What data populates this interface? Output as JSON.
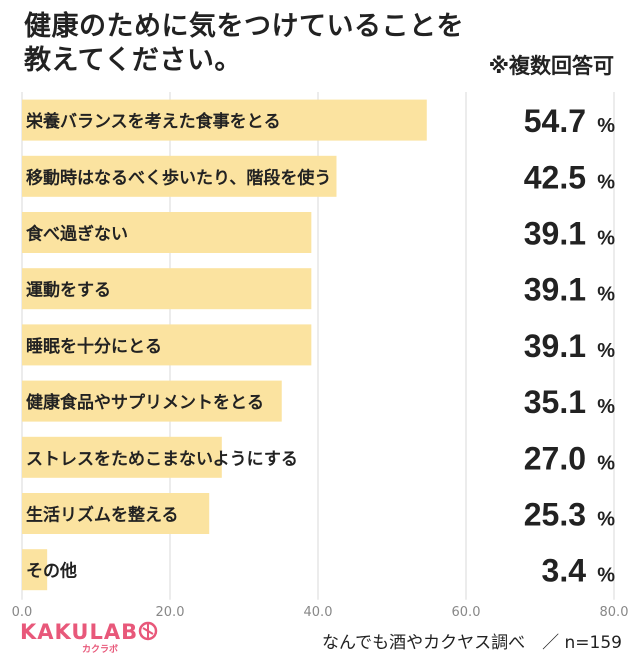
{
  "title_line1": "健康のために気をつけていることを",
  "title_line2": "教えてください。",
  "note": "※複数回答可",
  "logo": {
    "main": "KAKULAB",
    "sub": "カクラボ"
  },
  "source": "なんでも酒やカクヤス調べ　／ n=159",
  "colors": {
    "bar": "#fbe3a0",
    "grid": "#d9d9d9",
    "text": "#222222",
    "axis": "#888888",
    "brand": "#e8587a"
  },
  "chart_data": {
    "type": "bar",
    "orientation": "horizontal",
    "categories": [
      "栄養バランスを考えた食事をとる",
      "移動時はなるべく歩いたり、階段を使う",
      "食べ過ぎない",
      "運動をする",
      "睡眠を十分にとる",
      "健康食品やサプリメントをとる",
      "ストレスをためこまないようにする",
      "生活リズムを整える",
      "その他"
    ],
    "values": [
      54.7,
      42.5,
      39.1,
      39.1,
      39.1,
      35.1,
      27.0,
      25.3,
      3.4
    ],
    "value_labels": [
      "54.7",
      "42.5",
      "39.1",
      "39.1",
      "39.1",
      "35.1",
      "27.0",
      "25.3",
      "3.4"
    ],
    "value_suffix": "%",
    "xlim": [
      0,
      80
    ],
    "xticks": [
      "0.0",
      "20.0",
      "40.0",
      "60.0",
      "80.0"
    ],
    "grid": true
  }
}
